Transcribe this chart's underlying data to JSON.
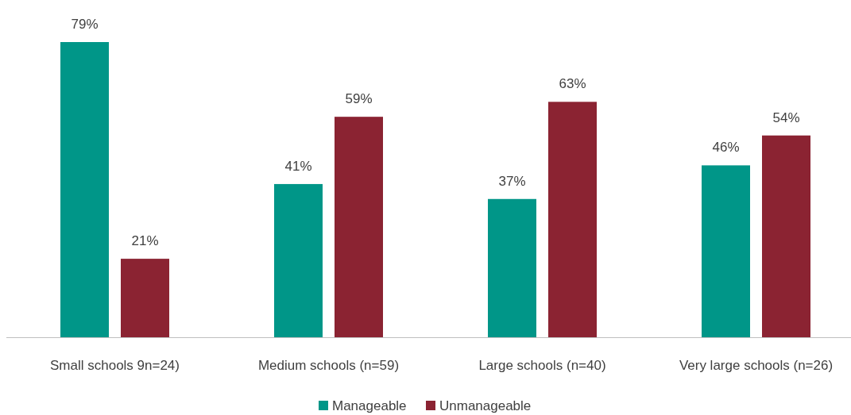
{
  "chart_data": {
    "type": "bar",
    "categories": [
      "Small schools 9n=24)",
      "Medium schools (n=59)",
      "Large schools (n=40)",
      "Very large schools (n=26)"
    ],
    "series": [
      {
        "name": "Manageable",
        "color": "#009688",
        "values": [
          79,
          41,
          37,
          46
        ],
        "value_labels": [
          "79%",
          "41%",
          "37%",
          "46%"
        ]
      },
      {
        "name": "Unmanageable",
        "color": "#8b2332",
        "values": [
          21,
          59,
          63,
          54
        ],
        "value_labels": [
          "21%",
          "59%",
          "63%",
          "54%"
        ]
      }
    ],
    "legend": "bottom"
  }
}
